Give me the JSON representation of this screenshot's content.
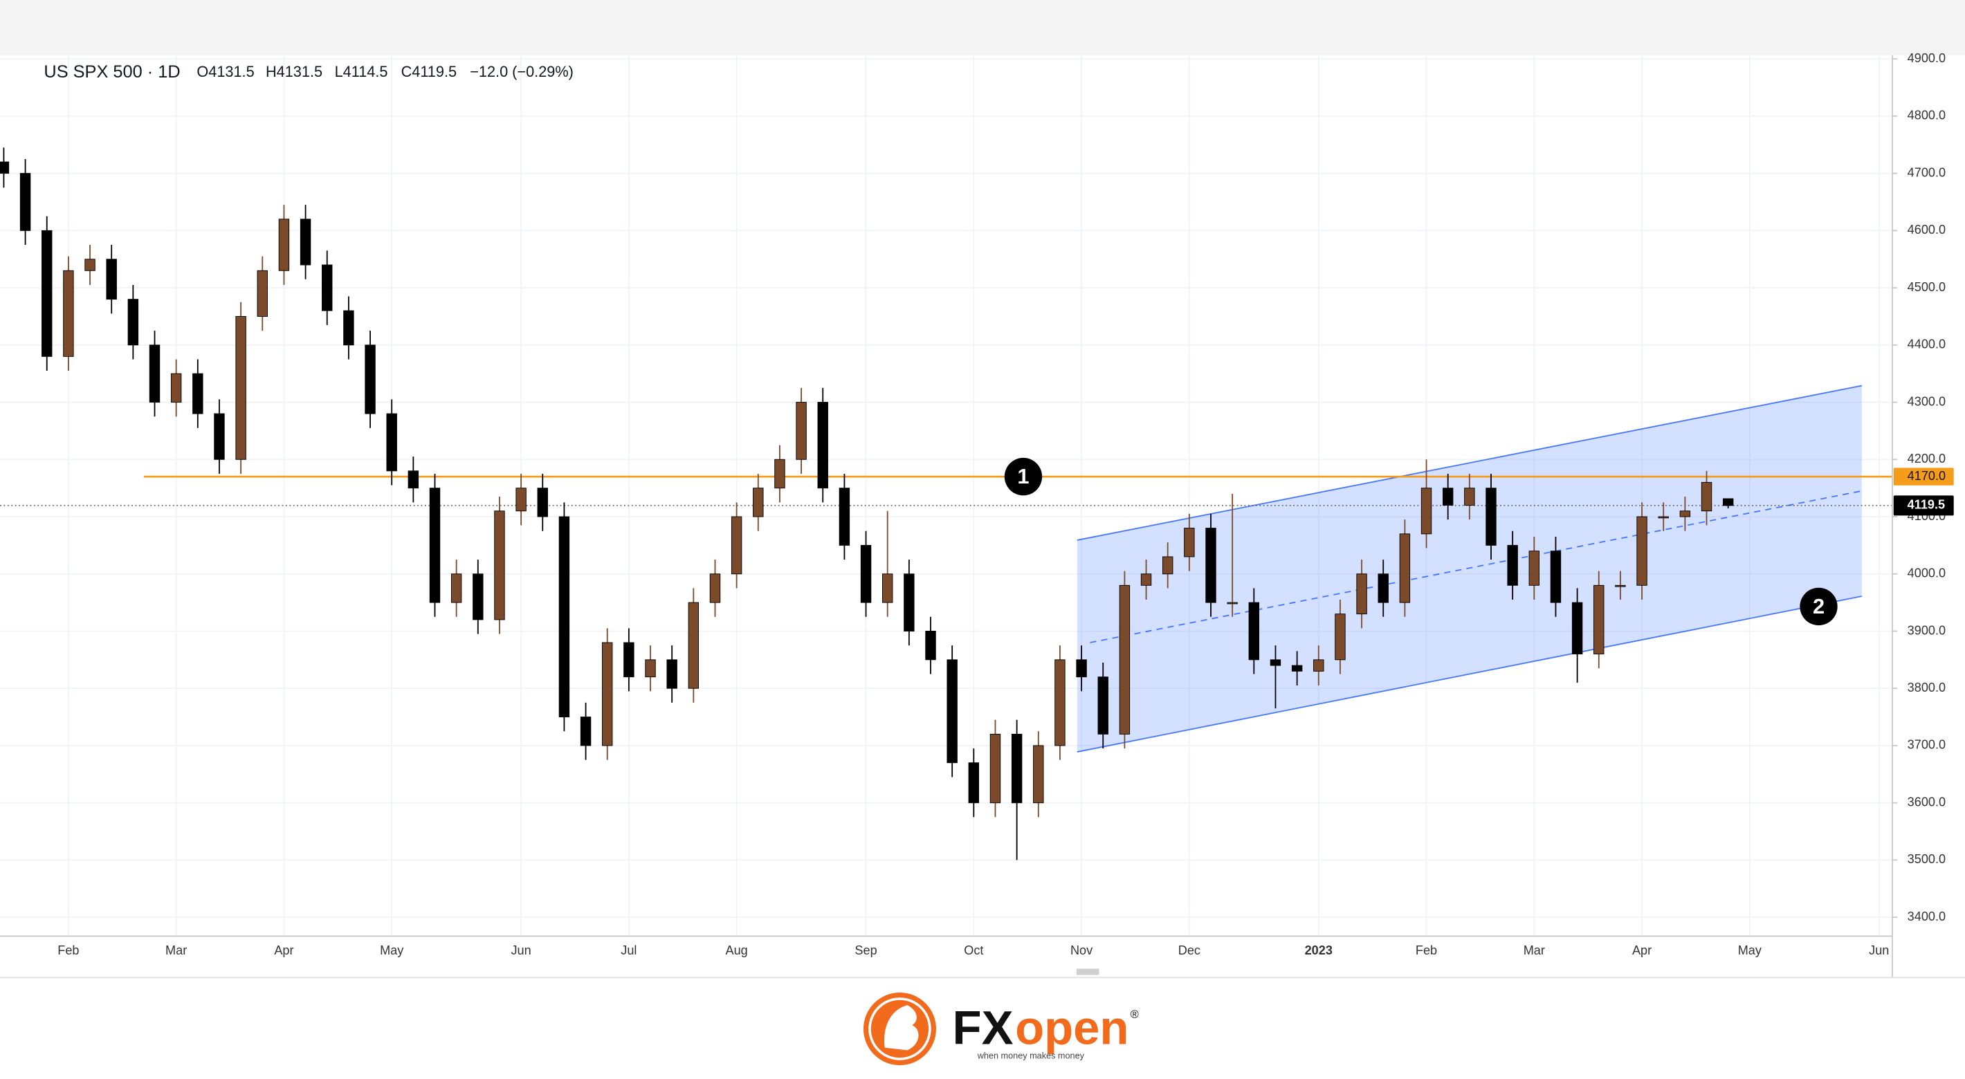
{
  "chart_data": {
    "type": "candlestick",
    "title": "US SPX 500 · 1D",
    "legend_text": [
      "O4131.5",
      "H4131.5",
      "L4114.5",
      "C4119.5",
      "−12.0 (−0.29%)"
    ],
    "categories": [
      null,
      null,
      null,
      "Feb",
      null,
      null,
      null,
      null,
      "Mar",
      null,
      null,
      null,
      null,
      "Apr",
      null,
      null,
      null,
      null,
      "May",
      null,
      null,
      null,
      null,
      null,
      "Jun",
      null,
      null,
      null,
      null,
      "Jul",
      null,
      null,
      null,
      null,
      "Aug",
      null,
      null,
      null,
      null,
      null,
      "Sep",
      null,
      null,
      null,
      null,
      "Oct",
      null,
      null,
      null,
      null,
      "Nov",
      null,
      null,
      null,
      null,
      "Dec",
      null,
      null,
      null,
      null,
      null,
      "2023",
      null,
      null,
      null,
      null,
      "Feb",
      null,
      null,
      null,
      null,
      "Mar",
      null,
      null,
      null,
      null,
      "Apr",
      null,
      null,
      null,
      null,
      "May",
      null,
      null,
      null,
      null,
      null,
      "Jun"
    ],
    "open": [
      4720,
      4700,
      4600,
      4380,
      4530,
      4550,
      4480,
      4400,
      4300,
      4350,
      4280,
      4200,
      4450,
      4530,
      4620,
      4540,
      4460,
      4400,
      4280,
      4180,
      4150,
      3950,
      4000,
      3920,
      4110,
      4150,
      4100,
      3750,
      3700,
      3880,
      3820,
      3850,
      3800,
      3950,
      4000,
      4100,
      4150,
      4200,
      4300,
      4150,
      4050,
      3950,
      4000,
      3900,
      3850,
      3670,
      3600,
      3720,
      3600,
      3700,
      3850,
      3820,
      3720,
      3980,
      4000,
      4030,
      4080,
      3950,
      3950,
      3850,
      3840,
      3830,
      3850,
      3930,
      4000,
      3950,
      4070,
      4150,
      4120,
      4150,
      4050,
      3980,
      4040,
      3950,
      3860,
      3980,
      3980,
      4100,
      4100,
      4110,
      4131.5,
      null,
      null,
      null,
      null,
      null,
      null,
      null
    ],
    "high": [
      4745,
      4725,
      4625,
      4555,
      4575,
      4575,
      4505,
      4425,
      4375,
      4375,
      4305,
      4475,
      4555,
      4645,
      4645,
      4565,
      4485,
      4425,
      4305,
      4205,
      4175,
      4025,
      4025,
      4135,
      4175,
      4175,
      4125,
      3775,
      3905,
      3905,
      3875,
      3875,
      3975,
      4025,
      4125,
      4175,
      4225,
      4325,
      4325,
      4175,
      4075,
      4110,
      4025,
      3925,
      3875,
      3695,
      3745,
      3745,
      3725,
      3875,
      3875,
      3845,
      4005,
      4025,
      4055,
      4105,
      4105,
      4140,
      3975,
      3875,
      3865,
      3875,
      3955,
      4025,
      4025,
      4095,
      4200,
      4175,
      4175,
      4175,
      4075,
      4065,
      4065,
      3975,
      4005,
      4005,
      4125,
      4125,
      4135,
      4180,
      4131.5,
      null,
      null,
      null,
      null,
      null,
      null,
      null
    ],
    "low": [
      4675,
      4575,
      4355,
      4355,
      4505,
      4455,
      4375,
      4275,
      4275,
      4255,
      4175,
      4175,
      4425,
      4505,
      4515,
      4435,
      4375,
      4255,
      4155,
      4125,
      3925,
      3925,
      3895,
      3895,
      4085,
      4075,
      3725,
      3675,
      3675,
      3795,
      3795,
      3775,
      3775,
      3925,
      3975,
      4075,
      4125,
      4175,
      4125,
      4025,
      3925,
      3925,
      3875,
      3825,
      3645,
      3575,
      3575,
      3500,
      3575,
      3675,
      3795,
      3695,
      3695,
      3955,
      3975,
      4005,
      3925,
      3925,
      3825,
      3765,
      3805,
      3805,
      3825,
      3905,
      3925,
      3925,
      4045,
      4095,
      4095,
      4025,
      3955,
      3955,
      3925,
      3810,
      3835,
      3955,
      3955,
      4075,
      4075,
      4085,
      4114.5,
      null,
      null,
      null,
      null,
      null,
      null,
      null
    ],
    "close": [
      4700,
      4600,
      4380,
      4530,
      4550,
      4480,
      4400,
      4300,
      4350,
      4280,
      4200,
      4450,
      4530,
      4620,
      4540,
      4460,
      4400,
      4280,
      4180,
      4150,
      3950,
      4000,
      3920,
      4110,
      4150,
      4100,
      3750,
      3700,
      3880,
      3820,
      3850,
      3800,
      3950,
      4000,
      4100,
      4150,
      4200,
      4300,
      4150,
      4050,
      3950,
      4000,
      3900,
      3850,
      3670,
      3600,
      3720,
      3600,
      3700,
      3850,
      3820,
      3720,
      3980,
      4000,
      4030,
      4080,
      3950,
      3950,
      3850,
      3840,
      3830,
      3850,
      3930,
      4000,
      3950,
      4070,
      4150,
      4120,
      4150,
      4050,
      3980,
      4040,
      3950,
      3860,
      3980,
      3980,
      4100,
      4100,
      4110,
      4160,
      4119.5,
      null,
      null,
      null,
      null,
      null,
      null,
      null
    ],
    "up_color": "#7b4a2a",
    "down_color": "#000000",
    "ylim": [
      3367,
      4900
    ],
    "yticks": [
      {
        "value": 3400,
        "label": "3400.0"
      },
      {
        "value": 3500,
        "label": "3500.0"
      },
      {
        "value": 3600,
        "label": "3600.0"
      },
      {
        "value": 3700,
        "label": "3700.0"
      },
      {
        "value": 3800,
        "label": "3800.0"
      },
      {
        "value": 3900,
        "label": "3900.0"
      },
      {
        "value": 4000,
        "label": "4000.0"
      },
      {
        "value": 4100,
        "label": "4100.0"
      },
      {
        "value": 4200,
        "label": "4200.0"
      },
      {
        "value": 4300,
        "label": "4300.0"
      },
      {
        "value": 4400,
        "label": "4400.0"
      },
      {
        "value": 4500,
        "label": "4500.0"
      },
      {
        "value": 4600,
        "label": "4600.0"
      },
      {
        "value": 4700,
        "label": "4700.0"
      },
      {
        "value": 4800,
        "label": "4800.0"
      },
      {
        "value": 4900,
        "label": "4900.0"
      }
    ],
    "grid": true,
    "hline": {
      "value": 4170,
      "label": "4170.0",
      "start": 6.5,
      "color": "#f59c1a"
    },
    "last_price": {
      "value": 4119.5,
      "color": "#000000"
    },
    "channel": {
      "upper": [
        [
          49.8,
          4059
        ],
        [
          86.2,
          4329
        ]
      ],
      "lower": [
        [
          49.8,
          3689
        ],
        [
          86.2,
          3961
        ]
      ],
      "mid": [
        [
          50.4,
          3880
        ],
        [
          86.2,
          4145
        ]
      ],
      "color": "#2962ff"
    },
    "annotations": [
      {
        "label": "1",
        "x": 47.3,
        "y": 4170
      },
      {
        "label": "2",
        "x": 84.2,
        "y": 3943
      }
    ]
  },
  "footer": {
    "brand_fx": "FX",
    "brand_open": "open",
    "registered": "®",
    "tagline": "when money makes money"
  }
}
